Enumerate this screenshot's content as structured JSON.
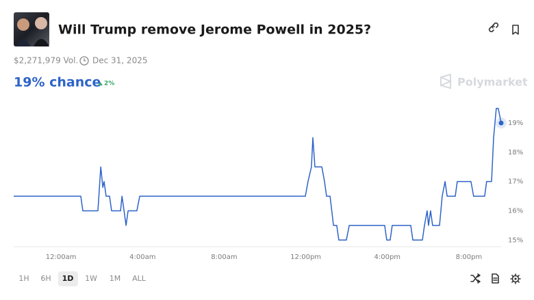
{
  "header": {
    "title": "Will Trump remove Jerome Powell in 2025?",
    "volume": "$2,271,979 Vol.",
    "end_date": "Dec 31, 2025"
  },
  "odds": {
    "chance": "19% chance",
    "change": "2%",
    "brand": "Polymarket"
  },
  "chart_data": {
    "type": "line",
    "color": "#2d63c8",
    "x": [
      -2.32,
      0.97,
      1.07,
      1.81,
      1.95,
      2.05,
      2.11,
      2.21,
      2.38,
      2.48,
      2.92,
      2.99,
      3.09,
      3.19,
      3.29,
      3.72,
      3.86,
      11.98,
      12.11,
      12.28,
      12.35,
      12.45,
      12.79,
      12.92,
      13.02,
      13.19,
      13.36,
      13.52,
      13.62,
      13.99,
      14.13,
      15.87,
      15.97,
      16.14,
      16.24,
      17.15,
      17.25,
      17.72,
      17.82,
      17.95,
      18.02,
      18.12,
      18.22,
      18.56,
      18.69,
      18.83,
      18.93,
      19.33,
      19.43,
      20.1,
      20.23,
      20.77,
      20.87,
      21.11,
      21.21,
      21.34,
      21.44,
      21.58
    ],
    "values": [
      16.5,
      16.5,
      16.0,
      16.0,
      17.5,
      16.8,
      17.0,
      16.5,
      16.5,
      16.0,
      16.0,
      16.5,
      16.0,
      15.5,
      16.0,
      16.0,
      16.5,
      16.5,
      17.0,
      17.5,
      18.5,
      17.5,
      17.5,
      17.0,
      16.5,
      16.5,
      15.5,
      15.5,
      15.0,
      15.0,
      15.5,
      15.5,
      15.0,
      15.0,
      15.5,
      15.5,
      15.0,
      15.0,
      15.5,
      16.0,
      15.5,
      16.0,
      15.5,
      15.5,
      16.5,
      17.0,
      16.5,
      16.5,
      17.0,
      17.0,
      16.5,
      16.5,
      17.0,
      17.0,
      18.5,
      19.5,
      19.5,
      19.0
    ],
    "xlim": [
      -2.32,
      21.58
    ],
    "xticks": [
      {
        "value": 0,
        "label": "12:00am"
      },
      {
        "value": 4,
        "label": "4:00am"
      },
      {
        "value": 8,
        "label": "8:00am"
      },
      {
        "value": 12,
        "label": "12:00pm"
      },
      {
        "value": 16,
        "label": "4:00pm"
      },
      {
        "value": 20,
        "label": "8:00pm"
      }
    ],
    "ylim": [
      14.75,
      19.7
    ],
    "yticks": [
      {
        "value": 15,
        "label": "15%"
      },
      {
        "value": 16,
        "label": "16%"
      },
      {
        "value": 17,
        "label": "17%"
      },
      {
        "value": 18,
        "label": "18%"
      },
      {
        "value": 19,
        "label": "19%"
      }
    ]
  },
  "range_buttons": [
    "1H",
    "6H",
    "1D",
    "1W",
    "1M",
    "ALL"
  ]
}
